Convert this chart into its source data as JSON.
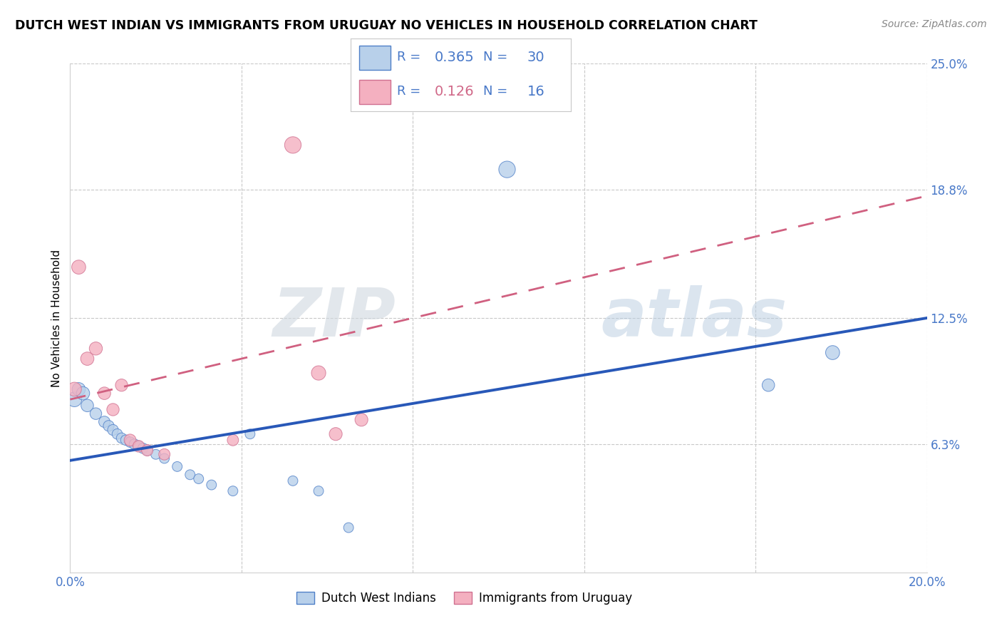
{
  "title": "DUTCH WEST INDIAN VS IMMIGRANTS FROM URUGUAY NO VEHICLES IN HOUSEHOLD CORRELATION CHART",
  "source": "Source: ZipAtlas.com",
  "ylabel": "No Vehicles in Household",
  "xlim": [
    0.0,
    0.2
  ],
  "ylim": [
    0.0,
    0.25
  ],
  "ytick_vals": [
    0.0,
    0.063,
    0.125,
    0.188,
    0.25
  ],
  "xtick_vals": [
    0.0,
    0.04,
    0.08,
    0.12,
    0.16,
    0.2
  ],
  "blue_fill": "#b8d0ea",
  "blue_edge": "#5080c8",
  "blue_line": "#2858b8",
  "pink_fill": "#f4b0c0",
  "pink_edge": "#d07090",
  "pink_line": "#d06080",
  "text_blue": "#4878c8",
  "text_pink": "#d06888",
  "legend_blue_r": "0.365",
  "legend_blue_n": "30",
  "legend_pink_r": "0.126",
  "legend_pink_n": "16",
  "watermark_zip": "ZIP",
  "watermark_atlas": "atlas",
  "blue_x": [
    0.001,
    0.002,
    0.003,
    0.004,
    0.006,
    0.008,
    0.009,
    0.01,
    0.011,
    0.012,
    0.013,
    0.014,
    0.015,
    0.016,
    0.017,
    0.018,
    0.02,
    0.022,
    0.025,
    0.028,
    0.03,
    0.033,
    0.038,
    0.042,
    0.052,
    0.058,
    0.065,
    0.102,
    0.163,
    0.178
  ],
  "blue_y": [
    0.085,
    0.09,
    0.088,
    0.082,
    0.078,
    0.074,
    0.072,
    0.07,
    0.068,
    0.066,
    0.065,
    0.064,
    0.063,
    0.062,
    0.061,
    0.06,
    0.058,
    0.056,
    0.052,
    0.048,
    0.046,
    0.043,
    0.04,
    0.068,
    0.045,
    0.04,
    0.022,
    0.198,
    0.092,
    0.108
  ],
  "blue_sizes": [
    220,
    180,
    180,
    160,
    140,
    130,
    120,
    120,
    110,
    110,
    110,
    110,
    110,
    110,
    110,
    110,
    100,
    100,
    100,
    100,
    100,
    100,
    100,
    100,
    100,
    100,
    100,
    280,
    160,
    200
  ],
  "pink_x": [
    0.001,
    0.002,
    0.004,
    0.006,
    0.008,
    0.01,
    0.012,
    0.014,
    0.016,
    0.018,
    0.022,
    0.038,
    0.052,
    0.058,
    0.062,
    0.068
  ],
  "pink_y": [
    0.09,
    0.15,
    0.105,
    0.11,
    0.088,
    0.08,
    0.092,
    0.065,
    0.062,
    0.06,
    0.058,
    0.065,
    0.21,
    0.098,
    0.068,
    0.075
  ],
  "pink_sizes": [
    200,
    200,
    180,
    175,
    160,
    155,
    155,
    145,
    140,
    135,
    130,
    130,
    280,
    210,
    170,
    170
  ],
  "blue_trend_x0": 0.0,
  "blue_trend_y0": 0.055,
  "blue_trend_x1": 0.2,
  "blue_trend_y1": 0.125,
  "pink_trend_x0": 0.0,
  "pink_trend_y0": 0.085,
  "pink_trend_x1": 0.2,
  "pink_trend_y1": 0.185
}
